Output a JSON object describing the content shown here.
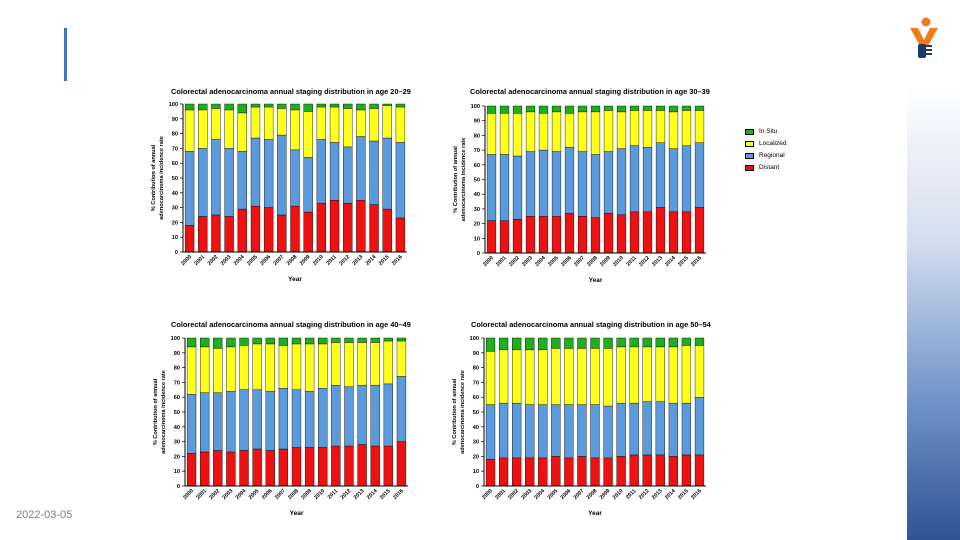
{
  "slide": {
    "date": "2022-03-05"
  },
  "colors": {
    "In Situ": "#1fae1f",
    "Localized": "#ffff1a",
    "Regional": "#5b9bdc",
    "Distant": "#ee1111"
  },
  "legend": [
    "In Situ",
    "Localized",
    "Regional",
    "Distant"
  ],
  "chart_data": [
    {
      "type": "bar",
      "stacked": true,
      "title": "Colorectal adenocarcinoma annual staging distribution in age 20–29",
      "xlabel": "Year",
      "ylabel": [
        "% Contribution of annual",
        "adenocarcinoma incidence rate"
      ],
      "ylim": [
        0,
        100
      ],
      "yticks": [
        0,
        10,
        20,
        30,
        40,
        50,
        60,
        70,
        80,
        90,
        100
      ],
      "categories": [
        "2000",
        "2001",
        "2002",
        "2003",
        "2004",
        "2005",
        "2006",
        "2007",
        "2008",
        "2009",
        "2010",
        "2011",
        "2012",
        "2013",
        "2014",
        "2015",
        "2016"
      ],
      "series": [
        {
          "name": "Distant",
          "values": [
            18,
            24,
            25,
            24,
            29,
            31,
            30,
            25,
            31,
            27,
            33,
            35,
            33,
            35,
            32,
            29,
            23
          ]
        },
        {
          "name": "Regional",
          "values": [
            50,
            46,
            51,
            46,
            39,
            46,
            46,
            54,
            38,
            37,
            43,
            39,
            38,
            43,
            43,
            48,
            51
          ]
        },
        {
          "name": "Localized",
          "values": [
            28,
            26,
            21,
            26,
            26,
            21,
            22,
            18,
            27,
            31,
            22,
            24,
            26,
            18,
            22,
            22,
            24
          ]
        },
        {
          "name": "In Situ",
          "values": [
            4,
            4,
            3,
            4,
            6,
            2,
            2,
            3,
            4,
            5,
            2,
            2,
            3,
            4,
            3,
            1,
            2
          ]
        }
      ]
    },
    {
      "type": "bar",
      "stacked": true,
      "title": "Colorectal adenocarcinoma annual staging distribution in age 30–39",
      "xlabel": "Year",
      "ylabel": [
        "% Contribution of annual",
        "adenocarcinoma incidence rate"
      ],
      "ylim": [
        0,
        100
      ],
      "yticks": [
        0,
        10,
        20,
        30,
        40,
        50,
        60,
        70,
        80,
        90,
        100
      ],
      "categories": [
        "2000",
        "2001",
        "2002",
        "2003",
        "2004",
        "2005",
        "2006",
        "2007",
        "2008",
        "2009",
        "2010",
        "2011",
        "2012",
        "2013",
        "2014",
        "2015",
        "2016"
      ],
      "series": [
        {
          "name": "Distant",
          "values": [
            22,
            22,
            23,
            25,
            25,
            25,
            27,
            25,
            24,
            27,
            26,
            28,
            28,
            31,
            28,
            28,
            31
          ]
        },
        {
          "name": "Regional",
          "values": [
            45,
            45,
            43,
            44,
            45,
            44,
            45,
            44,
            43,
            42,
            45,
            45,
            44,
            44,
            43,
            45,
            44
          ]
        },
        {
          "name": "Localized",
          "values": [
            28,
            28,
            29,
            27,
            25,
            27,
            23,
            27,
            29,
            28,
            25,
            24,
            25,
            22,
            25,
            24,
            22
          ]
        },
        {
          "name": "In Situ",
          "values": [
            5,
            5,
            5,
            4,
            5,
            4,
            5,
            4,
            4,
            3,
            4,
            3,
            3,
            3,
            4,
            3,
            3
          ]
        }
      ]
    },
    {
      "type": "bar",
      "stacked": true,
      "title": "Colorectal adenocarcinoma annual staging distribution in age 40–49",
      "xlabel": "Year",
      "ylabel": [
        "% Contribution of annual",
        "adenocarcinoma incidence rate"
      ],
      "ylim": [
        0,
        100
      ],
      "yticks": [
        0,
        10,
        20,
        30,
        40,
        50,
        60,
        70,
        80,
        90,
        100
      ],
      "categories": [
        "2000",
        "2001",
        "2002",
        "2003",
        "2004",
        "2005",
        "2006",
        "2007",
        "2008",
        "2009",
        "2010",
        "2011",
        "2012",
        "2013",
        "2014",
        "2015",
        "2016"
      ],
      "series": [
        {
          "name": "Distant",
          "values": [
            22,
            23,
            24,
            23,
            24,
            25,
            24,
            25,
            26,
            26,
            26,
            27,
            27,
            28,
            27,
            27,
            30
          ]
        },
        {
          "name": "Regional",
          "values": [
            40,
            40,
            39,
            41,
            41,
            40,
            40,
            41,
            39,
            38,
            40,
            41,
            40,
            40,
            41,
            42,
            44
          ]
        },
        {
          "name": "Localized",
          "values": [
            32,
            31,
            30,
            30,
            30,
            31,
            32,
            29,
            31,
            32,
            30,
            29,
            30,
            29,
            29,
            29,
            24
          ]
        },
        {
          "name": "In Situ",
          "values": [
            6,
            6,
            7,
            6,
            5,
            4,
            4,
            5,
            4,
            4,
            4,
            3,
            3,
            3,
            3,
            2,
            2
          ]
        }
      ]
    },
    {
      "type": "bar",
      "stacked": true,
      "title": "Colorectal adenocarcinoma annual staging distribution in age 50–54",
      "xlabel": "Year",
      "ylabel": [
        "% Contribution of annual",
        "adenocarcinoma incidence rate"
      ],
      "ylim": [
        0,
        100
      ],
      "yticks": [
        0,
        10,
        20,
        30,
        40,
        50,
        60,
        70,
        80,
        90,
        100
      ],
      "categories": [
        "2000",
        "2001",
        "2002",
        "2003",
        "2004",
        "2005",
        "2006",
        "2007",
        "2008",
        "2009",
        "2010",
        "2011",
        "2012",
        "2013",
        "2014",
        "2015",
        "2016"
      ],
      "series": [
        {
          "name": "Distant",
          "values": [
            18,
            19,
            19,
            19,
            19,
            20,
            19,
            20,
            19,
            19,
            20,
            21,
            21,
            21,
            20,
            21,
            21
          ]
        },
        {
          "name": "Regional",
          "values": [
            37,
            37,
            37,
            36,
            36,
            35,
            36,
            35,
            36,
            35,
            36,
            35,
            36,
            36,
            36,
            35,
            39
          ]
        },
        {
          "name": "Localized",
          "values": [
            36,
            36,
            36,
            37,
            37,
            38,
            38,
            38,
            38,
            39,
            38,
            38,
            37,
            37,
            38,
            39,
            35
          ]
        },
        {
          "name": "In Situ",
          "values": [
            9,
            8,
            8,
            8,
            8,
            7,
            7,
            7,
            7,
            7,
            6,
            6,
            6,
            6,
            6,
            5,
            5
          ]
        }
      ]
    }
  ]
}
